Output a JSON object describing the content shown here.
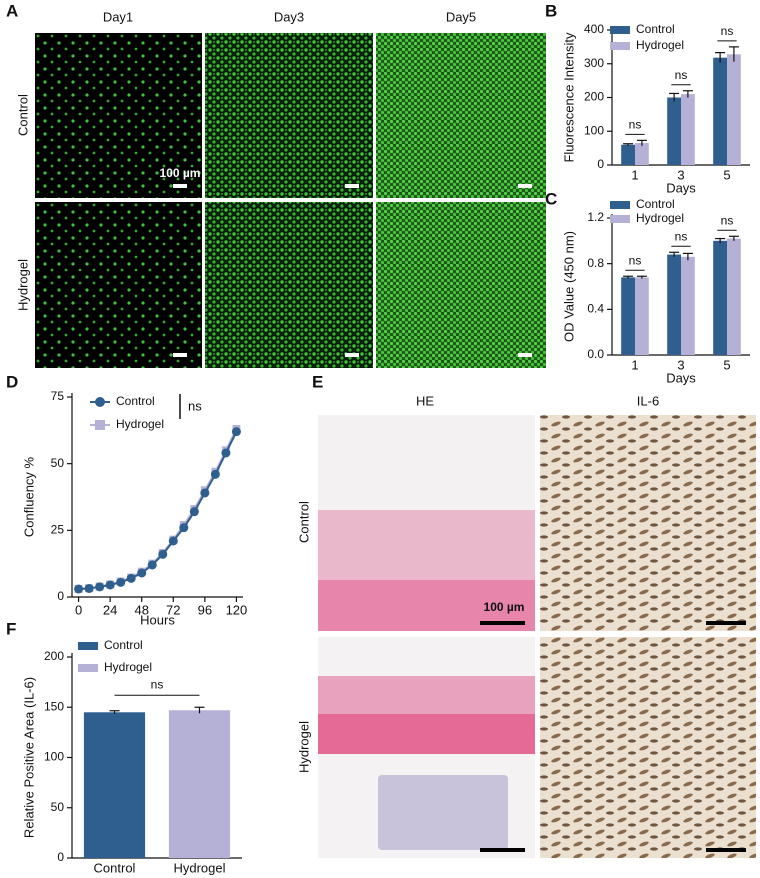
{
  "panels": {
    "letters": [
      "A",
      "B",
      "C",
      "D",
      "E",
      "F"
    ],
    "A": {
      "columns": [
        "Day1",
        "Day3",
        "Day5"
      ],
      "rows": [
        "Control",
        "Hydrogel"
      ],
      "scale_bar": "100 µm"
    },
    "E": {
      "columns": [
        "HE",
        "IL-6"
      ],
      "rows": [
        "Control",
        "Hydrogel"
      ],
      "scale_bar": "100 µm"
    }
  },
  "chart_data": [
    {
      "type": "bar",
      "categories": [
        "1",
        "3",
        "5"
      ],
      "series": [
        {
          "name": "Control",
          "color": "#2f5f8f",
          "values": [
            60,
            200,
            318
          ],
          "errors": [
            3,
            12,
            15
          ]
        },
        {
          "name": "Hydrogel",
          "color": "#b5b0d6",
          "values": [
            65,
            210,
            328
          ],
          "errors": [
            8,
            10,
            22
          ]
        }
      ],
      "ylabel": "Fluorescence Intensity",
      "xlabel": "Days",
      "ylim": [
        0,
        400
      ],
      "yticks": [
        0,
        100,
        200,
        300,
        400
      ],
      "annotations": [
        "ns",
        "ns",
        "ns"
      ]
    },
    {
      "type": "bar",
      "categories": [
        "1",
        "3",
        "5"
      ],
      "series": [
        {
          "name": "Control",
          "color": "#2f5f8f",
          "values": [
            0.68,
            0.88,
            1.0
          ],
          "errors": [
            0.01,
            0.02,
            0.02
          ]
        },
        {
          "name": "Hydrogel",
          "color": "#b5b0d6",
          "values": [
            0.68,
            0.86,
            1.02
          ],
          "errors": [
            0.01,
            0.03,
            0.02
          ]
        }
      ],
      "ylabel": "OD Value (450 nm)",
      "xlabel": "Days",
      "ylim": [
        0,
        1.2
      ],
      "yticks": [
        {
          "value": 0,
          "label": "0.0"
        },
        0.4,
        0.8,
        1.2
      ],
      "annotations": [
        "ns",
        "ns",
        "ns"
      ]
    },
    {
      "type": "line",
      "x": [
        0,
        8,
        16,
        24,
        32,
        40,
        48,
        56,
        64,
        72,
        80,
        88,
        96,
        104,
        112,
        120
      ],
      "series": [
        {
          "name": "Control",
          "color": "#2f5f8f",
          "values": [
            3,
            3.2,
            3.8,
            4.5,
            5.5,
            7,
            9,
            12,
            16,
            21,
            26,
            32,
            39,
            46,
            54,
            62
          ]
        },
        {
          "name": "Hydrogel",
          "color": "#b5b0d6",
          "values": [
            3,
            3.3,
            3.9,
            4.7,
            5.8,
            7.3,
            9.5,
            12.5,
            16.5,
            21.5,
            27,
            33,
            40,
            47,
            55,
            63
          ]
        }
      ],
      "ylabel": "Confluency %",
      "xlabel": "Hours",
      "xlim": [
        -5,
        125
      ],
      "xticks": [
        0,
        24,
        48,
        72,
        96,
        120
      ],
      "ylim": [
        0,
        75
      ],
      "yticks": [
        0,
        25,
        50,
        75
      ],
      "annotations": [
        "ns"
      ]
    },
    {
      "type": "bar",
      "categories": [
        "Control",
        "Hydrogel"
      ],
      "values": [
        145,
        147
      ],
      "errors": [
        1.5,
        3
      ],
      "colors": [
        "#2f5f8f",
        "#b5b0d6"
      ],
      "ylabel": "Relative Positive Area (IL-6)",
      "ylim": [
        0,
        200
      ],
      "yticks": [
        0,
        50,
        100,
        150,
        200
      ],
      "annotations": [
        "ns"
      ]
    }
  ]
}
